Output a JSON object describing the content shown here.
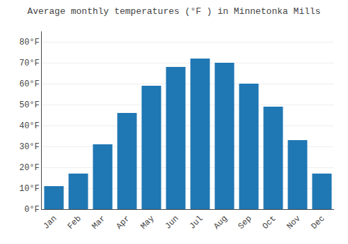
{
  "chart_data": {
    "type": "bar",
    "title": "Average monthly temperatures (°F ) in Minnetonka Mills",
    "categories": [
      "Jan",
      "Feb",
      "Mar",
      "Apr",
      "May",
      "Jun",
      "Jul",
      "Aug",
      "Sep",
      "Oct",
      "Nov",
      "Dec"
    ],
    "values": [
      11,
      17,
      31,
      46,
      59,
      68,
      72,
      70,
      60,
      49,
      33,
      17
    ],
    "ylim": [
      0,
      85
    ],
    "yticks": [
      {
        "value": 0,
        "label": "0°F"
      },
      {
        "value": 10,
        "label": "10°F"
      },
      {
        "value": 20,
        "label": "20°F"
      },
      {
        "value": 30,
        "label": "30°F"
      },
      {
        "value": 40,
        "label": "40°F"
      },
      {
        "value": 50,
        "label": "50°F"
      },
      {
        "value": 60,
        "label": "60°F"
      },
      {
        "value": 70,
        "label": "70°F"
      },
      {
        "value": 80,
        "label": "80°F"
      }
    ],
    "grid": true
  }
}
